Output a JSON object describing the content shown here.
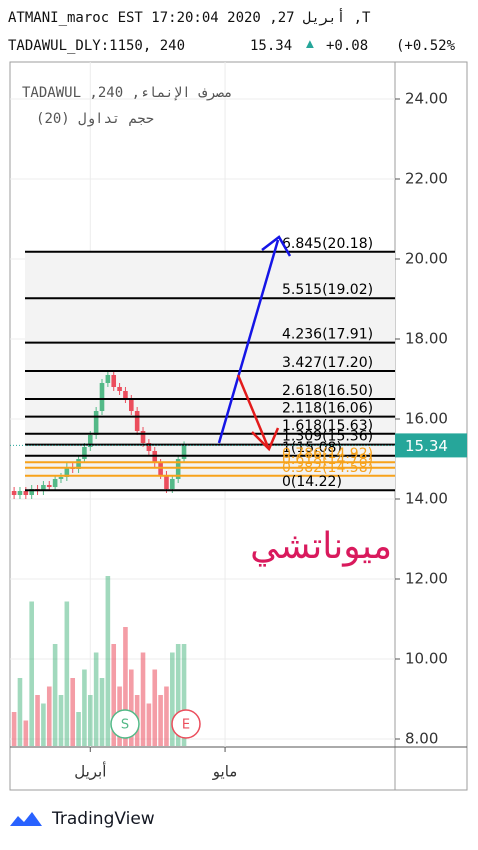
{
  "header": {
    "line1": "ATMANI_maroc EST 17:20:04 2020 ,27 أبريل ,T",
    "symbol": "TADAWUL_DLY:1150, 240",
    "price": "15.34",
    "arrow": "▲",
    "change": "+0.08",
    "change_pct": "(+0.52%"
  },
  "chart_data": {
    "type": "candlestick",
    "legend_title": "TADAWUL ,240 ,مصرف الإنماء",
    "volume_title": "حجم تداول (20)",
    "annotation": "ميوناتشي",
    "up_color": "#53b987",
    "down_color": "#eb4d5c",
    "open": [
      14.2,
      14.1,
      14.2,
      14.1,
      14.25,
      14.2,
      14.35,
      14.3,
      14.5,
      14.55,
      14.8,
      14.75,
      15.0,
      15.3,
      15.6,
      16.2,
      16.9,
      17.1,
      16.8,
      16.7,
      16.5,
      16.2,
      15.7,
      15.4,
      15.2,
      14.9,
      14.6,
      14.25,
      14.5,
      15.0
    ],
    "high": [
      14.3,
      14.3,
      14.3,
      14.35,
      14.35,
      14.45,
      14.45,
      14.6,
      14.65,
      14.9,
      14.9,
      15.1,
      15.4,
      15.7,
      16.3,
      17.0,
      17.2,
      17.2,
      16.9,
      16.8,
      16.6,
      16.3,
      15.8,
      15.5,
      15.3,
      15.0,
      14.7,
      14.6,
      15.1,
      15.44
    ],
    "low": [
      14.0,
      14.0,
      14.0,
      14.0,
      14.1,
      14.1,
      14.2,
      14.2,
      14.4,
      14.45,
      14.65,
      14.65,
      14.9,
      15.2,
      15.5,
      16.1,
      16.8,
      16.7,
      16.6,
      16.4,
      16.1,
      15.6,
      15.3,
      15.1,
      14.8,
      14.5,
      14.15,
      14.15,
      14.4,
      14.9
    ],
    "close": [
      14.1,
      14.2,
      14.1,
      14.25,
      14.2,
      14.35,
      14.3,
      14.5,
      14.55,
      14.8,
      14.75,
      15.0,
      15.3,
      15.6,
      16.2,
      16.9,
      17.1,
      16.8,
      16.7,
      16.5,
      16.2,
      15.7,
      15.4,
      15.2,
      14.9,
      14.6,
      14.25,
      14.5,
      15.0,
      15.34
    ],
    "volume": [
      20,
      40,
      15,
      85,
      30,
      25,
      35,
      60,
      30,
      85,
      40,
      20,
      45,
      30,
      55,
      40,
      100,
      60,
      35,
      70,
      45,
      30,
      55,
      25,
      45,
      30,
      35,
      55,
      60,
      60
    ],
    "vlim": [
      0,
      100
    ],
    "xlim": [
      -0.7,
      65
    ],
    "xticks": [
      {
        "value": 13,
        "label": "أبريل"
      },
      {
        "value": 36,
        "label": "مايو"
      }
    ],
    "ylim": [
      7.8,
      24.925
    ],
    "yticks": [
      {
        "value": 24,
        "label": "24.00"
      },
      {
        "value": 22,
        "label": "22.00"
      },
      {
        "value": 20,
        "label": "20.00"
      },
      {
        "value": 18,
        "label": "18.00"
      },
      {
        "value": 16,
        "label": "16.00"
      },
      {
        "value": 14,
        "label": "14.00"
      },
      {
        "value": 12,
        "label": "12.00"
      },
      {
        "value": 10,
        "label": "10.00"
      },
      {
        "value": 8,
        "label": "8.00"
      }
    ],
    "last_price": {
      "value": 15.34,
      "label": "15.34"
    },
    "fib_levels": [
      {
        "price": 20.18,
        "label": "6.845(20.18)",
        "color": "#000000"
      },
      {
        "price": 19.02,
        "label": "5.515(19.02)",
        "color": "#000000"
      },
      {
        "price": 17.91,
        "label": "4.236(17.91)",
        "color": "#000000"
      },
      {
        "price": 17.2,
        "label": "3.427(17.20)",
        "color": "#000000"
      },
      {
        "price": 16.5,
        "label": "2.618(16.50)",
        "color": "#000000"
      },
      {
        "price": 16.06,
        "label": "2.118(16.06)",
        "color": "#000000"
      },
      {
        "price": 15.63,
        "label": "1.618(15.63)",
        "color": "#000000"
      },
      {
        "price": 15.36,
        "label": "1.309(15.36)",
        "color": "#000000"
      },
      {
        "price": 15.08,
        "label": "1(15.08)",
        "color": "#000000"
      },
      {
        "price": 14.92,
        "label": "0.786(14.92)",
        "color": "#f7a21b"
      },
      {
        "price": 14.78,
        "label": "0.618(14.78)",
        "color": "#f7a21b"
      },
      {
        "price": 14.58,
        "label": "0.382(14.58)",
        "color": "#f7a21b"
      },
      {
        "price": 14.22,
        "label": "0(14.22)",
        "color": "#000000"
      }
    ],
    "markers": [
      "S",
      "E"
    ]
  },
  "footer": {
    "brand": "TradingView"
  }
}
